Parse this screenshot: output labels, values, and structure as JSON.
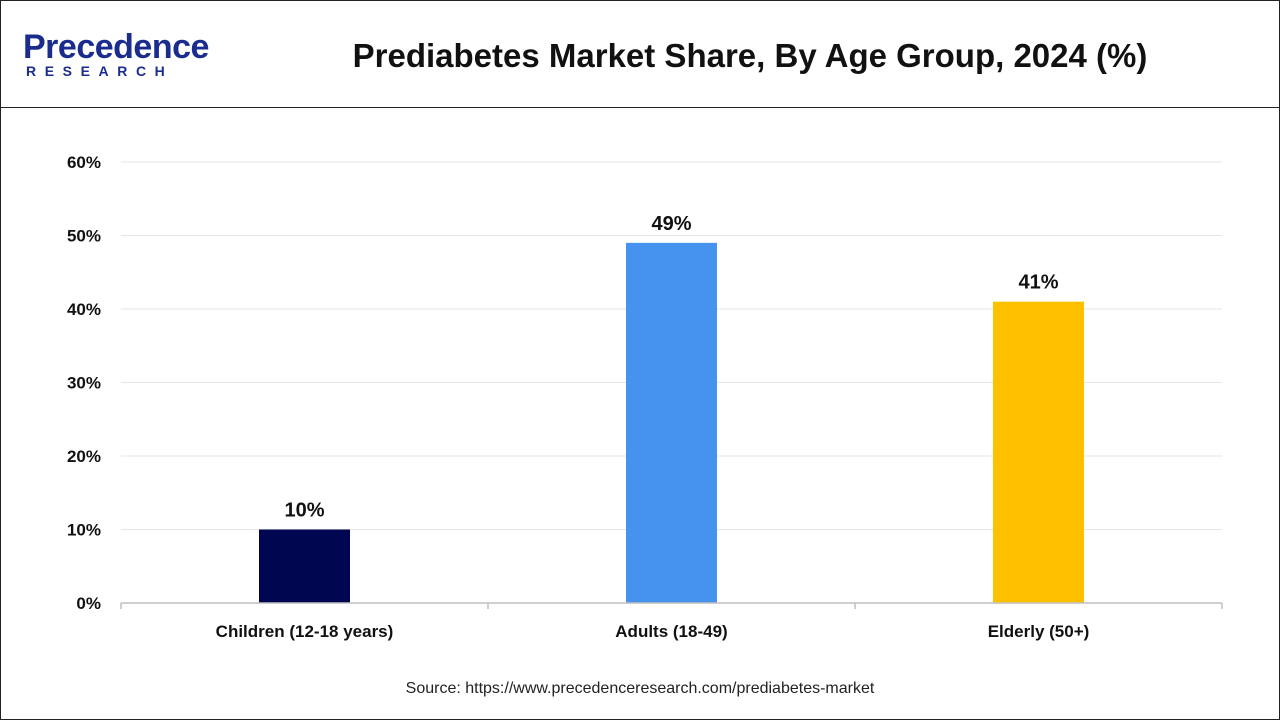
{
  "brand": {
    "name_top": "Precedence",
    "name_bottom": "RESEARCH",
    "color": "#1b2c8f"
  },
  "title": "Prediabetes Market Share, By Age Group, 2024 (%)",
  "source": "Source: https://www.precedenceresearch.com/prediabetes-market",
  "chart_data": {
    "type": "bar",
    "title": "Prediabetes Market Share, By Age Group, 2024 (%)",
    "categories": [
      "Children (12-18 years)",
      "Adults (18-49)",
      "Elderly (50+)"
    ],
    "values": [
      10,
      49,
      41
    ],
    "data_labels": [
      "10%",
      "49%",
      "41%"
    ],
    "colors": [
      "#000750",
      "#4593ef",
      "#ffc000"
    ],
    "ylim": [
      0,
      60
    ],
    "yticks": [
      0,
      10,
      20,
      30,
      40,
      50,
      60
    ],
    "ytick_labels": [
      "0%",
      "10%",
      "20%",
      "30%",
      "40%",
      "50%",
      "60%"
    ],
    "xlabel": "",
    "ylabel": "",
    "grid": true,
    "legend": "none"
  }
}
